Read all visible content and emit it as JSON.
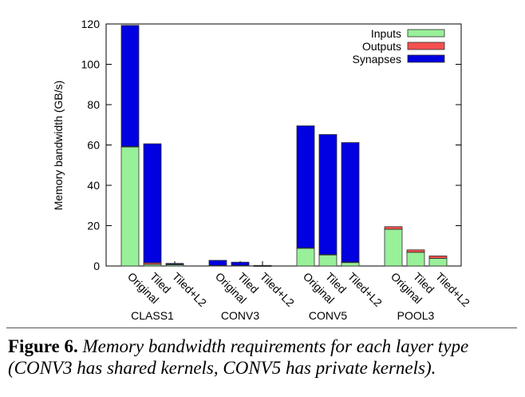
{
  "chart_data": {
    "type": "bar",
    "stacked": true,
    "ylabel": "Memory bandwidth (GB/s)",
    "ylim": [
      0,
      120
    ],
    "yticks": [
      0,
      20,
      40,
      60,
      80,
      100,
      120
    ],
    "groups": [
      {
        "name": "CLASS1",
        "bars": [
          {
            "label": "Original",
            "Inputs": 59.0,
            "Outputs": 0.3,
            "Synapses": 60.0
          },
          {
            "label": "Tiled",
            "Inputs": 0.8,
            "Outputs": 0.8,
            "Synapses": 59.0
          },
          {
            "label": "Tiled+L2",
            "Inputs": 0.6,
            "Outputs": 0.3,
            "Synapses": 0.4
          }
        ]
      },
      {
        "name": "CONV3",
        "bars": [
          {
            "label": "Original",
            "Inputs": 0.2,
            "Outputs": 0.1,
            "Synapses": 2.5
          },
          {
            "label": "Tiled",
            "Inputs": 0.2,
            "Outputs": 0.1,
            "Synapses": 1.6
          },
          {
            "label": "Tiled+L2",
            "Inputs": 0.05,
            "Outputs": 0.05,
            "Synapses": 0.2
          }
        ]
      },
      {
        "name": "CONV5",
        "bars": [
          {
            "label": "Original",
            "Inputs": 8.8,
            "Outputs": 0.2,
            "Synapses": 60.5
          },
          {
            "label": "Tiled",
            "Inputs": 5.5,
            "Outputs": 0.2,
            "Synapses": 59.5
          },
          {
            "label": "Tiled+L2",
            "Inputs": 1.7,
            "Outputs": 0.3,
            "Synapses": 59.2
          }
        ]
      },
      {
        "name": "POOL3",
        "bars": [
          {
            "label": "Original",
            "Inputs": 18.2,
            "Outputs": 1.3,
            "Synapses": 0
          },
          {
            "label": "Tiled",
            "Inputs": 6.8,
            "Outputs": 1.2,
            "Synapses": 0
          },
          {
            "label": "Tiled+L2",
            "Inputs": 3.8,
            "Outputs": 1.2,
            "Synapses": 0
          }
        ]
      }
    ],
    "series": [
      {
        "name": "Inputs",
        "color": "#98f098"
      },
      {
        "name": "Outputs",
        "color": "#f55050"
      },
      {
        "name": "Synapses",
        "color": "#0000e0"
      }
    ],
    "legend_position": "top-right",
    "grid": false
  },
  "caption": {
    "lead": "Figure 6.",
    "text": "Memory bandwidth requirements for each layer type (CONV3 has shared kernels, CONV5 has private kernels)."
  }
}
